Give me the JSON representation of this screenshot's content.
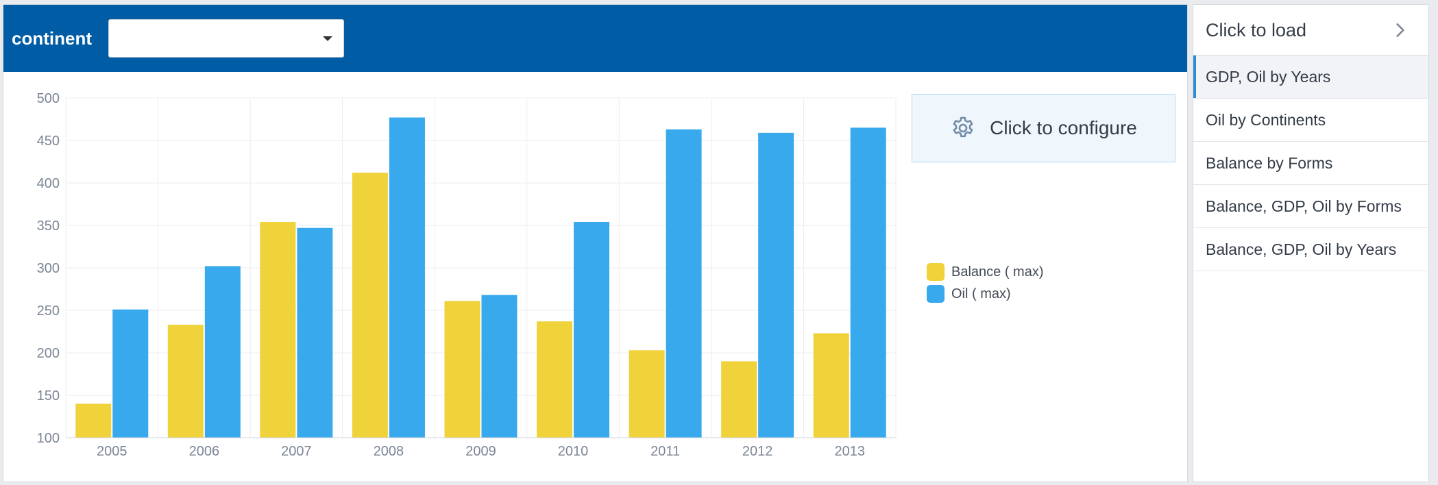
{
  "filter": {
    "label": "continent",
    "selected_value": ""
  },
  "configure": {
    "label": "Click to configure",
    "icon": "gear-icon"
  },
  "side_panel": {
    "title": "Click to load",
    "items": [
      {
        "label": "GDP, Oil by Years",
        "active": true
      },
      {
        "label": "Oil by Continents",
        "active": false
      },
      {
        "label": "Balance by Forms",
        "active": false
      },
      {
        "label": "Balance, GDP, Oil by Forms",
        "active": false
      },
      {
        "label": "Balance, GDP, Oil by Years",
        "active": false
      }
    ]
  },
  "colors": {
    "header": "#005ca4",
    "balance": "#f0d23a",
    "oil": "#37a9ec"
  },
  "chart_data": {
    "type": "bar",
    "categories": [
      "2005",
      "2006",
      "2007",
      "2008",
      "2009",
      "2010",
      "2011",
      "2012",
      "2013"
    ],
    "series": [
      {
        "name": "Balance ( max)",
        "values": [
          140,
          233,
          354,
          412,
          261,
          237,
          203,
          190,
          223
        ]
      },
      {
        "name": "Oil ( max)",
        "values": [
          251,
          302,
          347,
          477,
          268,
          354,
          463,
          459,
          465
        ]
      }
    ],
    "yticks": [
      "100",
      "150",
      "200",
      "250",
      "300",
      "350",
      "400",
      "450",
      "500"
    ],
    "ylim": [
      100,
      500
    ],
    "grid": true,
    "legend_position": "right"
  }
}
